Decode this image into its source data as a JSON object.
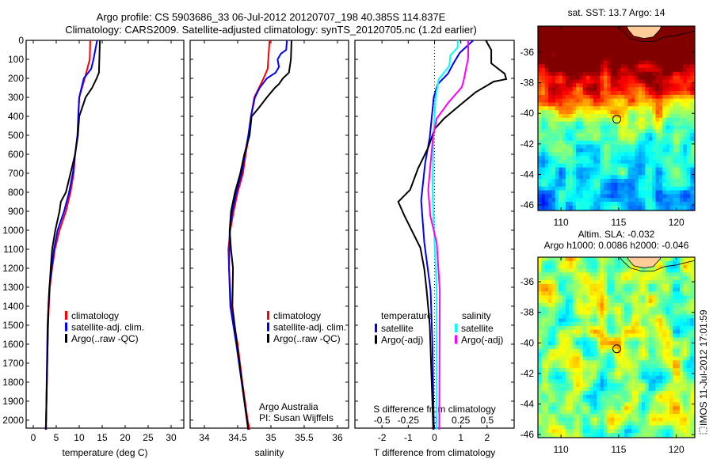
{
  "title": {
    "line1": "Argo profile: CS 5903686_33 06-Jul-2012 20120707_198 40.385S 114.837E",
    "line2": "Climatology: CARS2009. Satellite-adjusted climatology: synTS_20120705.nc (1.2d earlier)"
  },
  "credits": {
    "line1": "Argo Australia",
    "line2": "PI: Susan Wijffels",
    "timestamp": "IMOS 11-Jul-2012 17:01:59"
  },
  "chart_data": [
    {
      "type": "line",
      "panel": "temperature",
      "xlabel": "temperature (deg C)",
      "ylabel": "",
      "xlim": [
        -1.55,
        32.76
      ],
      "ylim": [
        0,
        2042
      ],
      "y_reversed": true,
      "xticks": [
        0,
        5,
        10,
        15,
        20,
        25,
        30
      ],
      "yticks": [
        0,
        100,
        200,
        300,
        400,
        500,
        600,
        700,
        800,
        900,
        1000,
        1100,
        1200,
        1300,
        1400,
        1500,
        1600,
        1700,
        1800,
        1900,
        2000
      ],
      "legend": [
        "climatology",
        "satellite-adj. clim.",
        "Argo(..raw -QC)"
      ],
      "series": [
        {
          "name": "climatology",
          "color": "#ff0000",
          "depth": [
            0,
            100,
            200,
            300,
            400,
            500,
            600,
            700,
            800,
            900,
            1000,
            1100,
            1200,
            1300,
            1500,
            2000,
            2050
          ],
          "values": [
            12.4,
            12.3,
            11.2,
            10.0,
            9.8,
            9.7,
            9.1,
            8.8,
            8.1,
            7.1,
            5.7,
            4.7,
            4.1,
            3.6,
            3.2,
            2.8,
            2.7
          ]
        },
        {
          "name": "satellite-adj. clim.",
          "color": "#0000ff",
          "depth": [
            0,
            100,
            150,
            200,
            300,
            400,
            500,
            600,
            700,
            800,
            900,
            1000,
            1100,
            1200,
            1300,
            1500,
            2000,
            2050
          ],
          "values": [
            13.9,
            13.1,
            12.6,
            11.0,
            10.0,
            9.8,
            9.6,
            9.1,
            8.6,
            7.8,
            6.7,
            5.3,
            4.5,
            4.0,
            3.5,
            3.1,
            2.8,
            2.7
          ]
        },
        {
          "name": "Argo(..raw -QC)",
          "color": "#000000",
          "depth": [
            0,
            170,
            200,
            250,
            300,
            350,
            400,
            500,
            600,
            700,
            800,
            850,
            900,
            1000,
            1100,
            1200,
            1400,
            2000,
            2050
          ],
          "values": [
            14.5,
            14.3,
            13.8,
            12.8,
            11.4,
            10.7,
            10.0,
            9.7,
            9.1,
            8.1,
            7.1,
            6.0,
            5.7,
            4.8,
            4.1,
            3.8,
            3.3,
            2.8,
            2.8
          ]
        }
      ]
    },
    {
      "type": "line",
      "panel": "salinity",
      "xlabel": "salinity",
      "xlim": [
        33.786,
        36.167
      ],
      "ylim": [
        0,
        2042
      ],
      "y_reversed": true,
      "xticks": [
        34,
        34.5,
        35,
        35.5,
        36
      ],
      "legend": [
        "climatology",
        "satellite-adj. clim.",
        "Argo(..raw -QC)"
      ],
      "series": [
        {
          "name": "climatology",
          "color": "#ff0000",
          "depth": [
            0,
            150,
            200,
            250,
            300,
            400,
            500,
            600,
            700,
            800,
            900,
            1000,
            1100,
            1200,
            1400,
            1600,
            1800,
            2000,
            2050
          ],
          "values": [
            34.98,
            34.95,
            34.89,
            34.82,
            34.75,
            34.7,
            34.67,
            34.62,
            34.58,
            34.5,
            34.44,
            34.39,
            34.36,
            34.37,
            34.4,
            34.5,
            34.57,
            34.65,
            34.68
          ]
        },
        {
          "name": "satellite-adj. clim.",
          "color": "#0000ff",
          "depth": [
            0,
            50,
            70,
            100,
            140,
            170,
            200,
            250,
            300,
            400,
            500,
            600,
            700,
            800,
            900,
            1000,
            1200,
            1400,
            1600,
            1800,
            2000,
            2050
          ],
          "values": [
            35.24,
            35.23,
            35.15,
            35.1,
            35.12,
            35.07,
            34.94,
            34.83,
            34.76,
            34.7,
            34.66,
            34.61,
            34.56,
            34.48,
            34.42,
            34.38,
            34.37,
            34.39,
            34.48,
            34.56,
            34.64,
            34.66
          ]
        },
        {
          "name": "Argo(..raw -QC)",
          "color": "#000000",
          "depth": [
            0,
            100,
            170,
            200,
            230,
            250,
            300,
            350,
            380,
            400,
            500,
            600,
            700,
            800,
            900,
            1000,
            1100,
            1200,
            1400,
            1600,
            2000,
            2050
          ],
          "values": [
            35.31,
            35.3,
            35.27,
            35.18,
            35.12,
            35.06,
            34.94,
            34.83,
            34.76,
            34.71,
            34.68,
            34.6,
            34.54,
            34.46,
            34.4,
            34.38,
            34.4,
            34.43,
            34.42,
            34.49,
            34.64,
            34.66
          ]
        }
      ]
    },
    {
      "type": "line",
      "panel": "difference",
      "xlabel": "T difference from climatology",
      "x2label": "S difference from climatology",
      "xlim": [
        -3.03,
        3.03
      ],
      "x2lim": [
        -0.7575,
        0.7575
      ],
      "ylim": [
        0,
        2042
      ],
      "y_reversed": true,
      "xticks": [
        -2,
        -1,
        0,
        1,
        2
      ],
      "x2ticks": [
        -0.5,
        -0.25,
        0,
        0.25,
        0.5
      ],
      "x2ticklabels": [
        "-0.5",
        "-0.25",
        "0",
        "0.25",
        "0.5"
      ],
      "legend_groups": [
        {
          "heading": "temperature",
          "items": [
            "satellite",
            "Argo(-adj)"
          ]
        },
        {
          "heading": "salinity",
          "items": [
            "satellite",
            "Argo(-adj)"
          ]
        }
      ],
      "series": [
        {
          "name": "temperature satellite",
          "axis": "T",
          "color": "#0000ff",
          "depth": [
            0,
            66,
            121,
            176,
            231,
            300,
            510,
            648,
            843,
            1065,
            1315,
            1600,
            2000,
            2050
          ],
          "values": [
            1.47,
            0.96,
            0.72,
            0.51,
            0.12,
            -0.03,
            -0.18,
            -0.36,
            -0.51,
            -0.39,
            -0.15,
            -0.08,
            -0.03,
            -0.03
          ]
        },
        {
          "name": "temperature Argo(-adj)",
          "axis": "T",
          "color": "#000000",
          "depth": [
            0,
            51,
            121,
            176,
            204,
            217,
            274,
            342,
            412,
            467,
            565,
            675,
            787,
            850,
            925,
            1008,
            1092,
            1204,
            1315,
            1500,
            2000,
            2050
          ],
          "values": [
            1.95,
            2.16,
            2.16,
            2.67,
            2.73,
            2.25,
            1.56,
            0.96,
            0.36,
            0.0,
            -0.24,
            -0.63,
            -0.93,
            -1.38,
            -1.14,
            -0.84,
            -0.54,
            -0.39,
            -0.3,
            -0.18,
            -0.06,
            -0.05
          ]
        },
        {
          "name": "salinity satellite",
          "axis": "S",
          "color": "#00ffff",
          "depth": [
            0,
            37,
            79,
            135,
            204,
            300,
            510,
            787,
            1065,
            1315,
            2000,
            2050
          ],
          "values": [
            0.22,
            0.22,
            0.15,
            0.14,
            0.04,
            0.01,
            -0.01,
            -0.02,
            0.0,
            0.02,
            0.02,
            0.02
          ]
        },
        {
          "name": "salinity Argo(-adj)",
          "axis": "S",
          "color": "#ff00ff",
          "depth": [
            0,
            92,
            204,
            246,
            329,
            412,
            510,
            787,
            925,
            1065,
            1315,
            2000,
            2050
          ],
          "values": [
            0.32,
            0.32,
            0.28,
            0.26,
            0.13,
            0.02,
            -0.015,
            -0.06,
            -0.04,
            0.02,
            0.05,
            0.045,
            0.045
          ]
        }
      ]
    },
    {
      "type": "heatmap",
      "panel": "sst-map",
      "title": "sat. SST: 13.7 Argo: 14",
      "xlim": [
        108.0,
        121.6
      ],
      "ylim": [
        -46.36,
        -34.29
      ],
      "xticks": [
        110,
        115,
        120
      ],
      "yticks": [
        -36,
        -38,
        -40,
        -42,
        -44,
        -46
      ],
      "float_position": {
        "lon": 114.837,
        "lat": -40.385
      },
      "land_color": "#ffcc99"
    },
    {
      "type": "heatmap",
      "panel": "sla-map",
      "title": "Altim. SLA: -0.032",
      "subtitle": "Argo h1000: 0.0086 h2000: -0.046",
      "xlim": [
        108.0,
        121.6
      ],
      "ylim": [
        -46.2,
        -34.39
      ],
      "xticks": [
        110,
        115,
        120
      ],
      "yticks": [
        -36,
        -38,
        -40,
        -42,
        -44,
        -46
      ],
      "float_position": {
        "lon": 114.837,
        "lat": -40.385
      },
      "land_color": "#ffcc99"
    }
  ]
}
